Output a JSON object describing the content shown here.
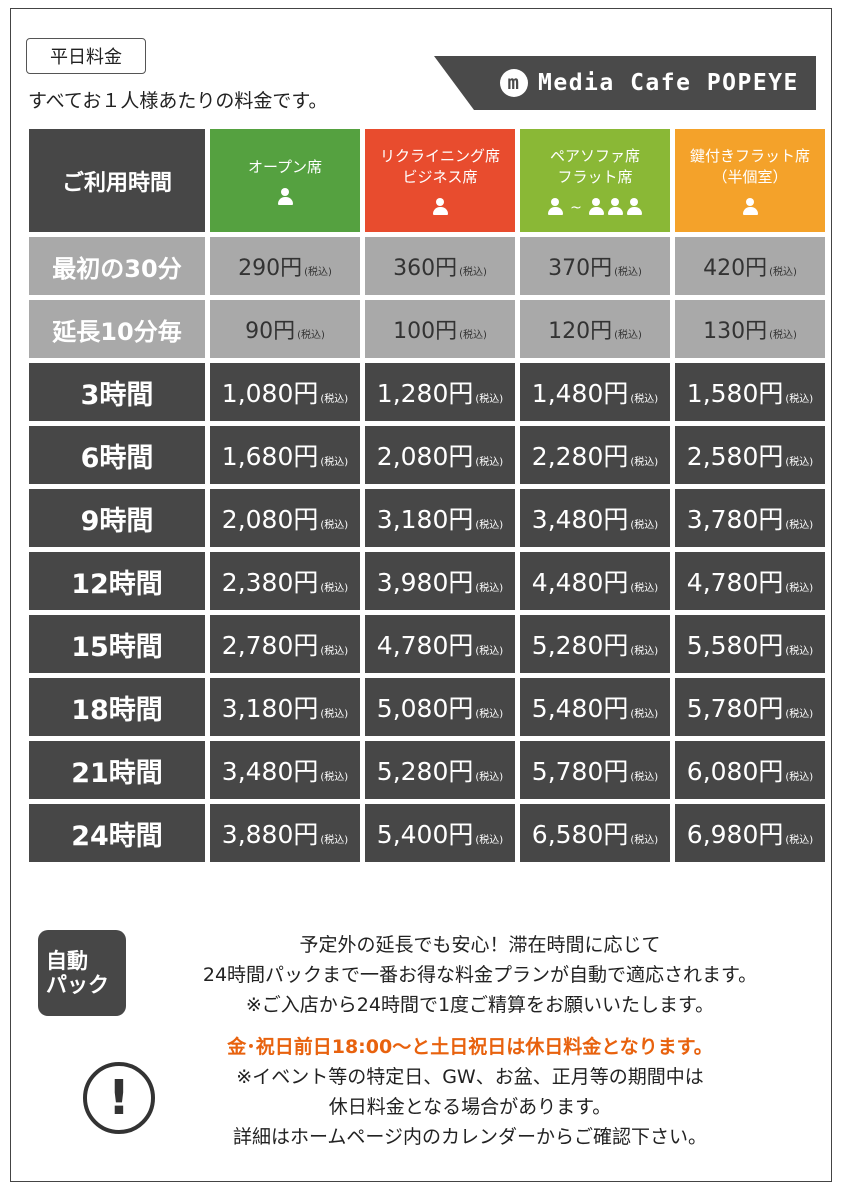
{
  "header": {
    "tag": "平日料金",
    "subtitle": "すべてお１人様あたりの料金です。",
    "brand": "Media Cafe POPEYE",
    "brand_logo_letter": "m"
  },
  "table": {
    "time_header": "ご利用時間",
    "columns": [
      {
        "line1": "オープン席",
        "line2": "",
        "people": "1"
      },
      {
        "line1": "リクライニング席",
        "line2": "ビジネス席",
        "people": "1"
      },
      {
        "line1": "ペアソファ席",
        "line2": "フラット席",
        "people": "2-3"
      },
      {
        "line1": "鍵付きフラット席",
        "line2": "（半個室）",
        "people": "1"
      }
    ],
    "tax_note": "(税込)",
    "tilde": "~",
    "rows": [
      {
        "label": "最初の30分",
        "style": "gray",
        "prices": [
          "290円",
          "360円",
          "370円",
          "420円"
        ]
      },
      {
        "label": "延長10分毎",
        "style": "gray",
        "prices": [
          "90円",
          "100円",
          "120円",
          "130円"
        ]
      },
      {
        "label": "3時間",
        "style": "dark",
        "prices": [
          "1,080円",
          "1,280円",
          "1,480円",
          "1,580円"
        ]
      },
      {
        "label": "6時間",
        "style": "dark",
        "prices": [
          "1,680円",
          "2,080円",
          "2,280円",
          "2,580円"
        ]
      },
      {
        "label": "9時間",
        "style": "dark",
        "prices": [
          "2,080円",
          "3,180円",
          "3,480円",
          "3,780円"
        ]
      },
      {
        "label": "12時間",
        "style": "dark",
        "prices": [
          "2,380円",
          "3,980円",
          "4,480円",
          "4,780円"
        ]
      },
      {
        "label": "15時間",
        "style": "dark",
        "prices": [
          "2,780円",
          "4,780円",
          "5,280円",
          "5,580円"
        ]
      },
      {
        "label": "18時間",
        "style": "dark",
        "prices": [
          "3,180円",
          "5,080円",
          "5,480円",
          "5,780円"
        ]
      },
      {
        "label": "21時間",
        "style": "dark",
        "prices": [
          "3,480円",
          "5,280円",
          "5,780円",
          "6,080円"
        ]
      },
      {
        "label": "24時間",
        "style": "dark",
        "prices": [
          "3,880円",
          "5,400円",
          "6,580円",
          "6,980円"
        ]
      }
    ]
  },
  "auto_pack": {
    "badge_line1": "自動",
    "badge_line2": "パック",
    "lines": [
      "予定外の延長でも安心！滞在時間に応じて",
      "24時間パックまで一番お得な料金プランが自動で適応されます。",
      "※ご入店から24時間で1度ご精算をお願いいたします。"
    ]
  },
  "notice": {
    "icon": "!",
    "highlight": "金･祝日前日18:00～と土日祝日は休日料金となります。",
    "lines": [
      "※イベント等の特定日、GW、お盆、正月等の期間中は",
      "休日料金となる場合があります。",
      "詳細はホームページ内のカレンダーからご確認下さい。"
    ]
  }
}
